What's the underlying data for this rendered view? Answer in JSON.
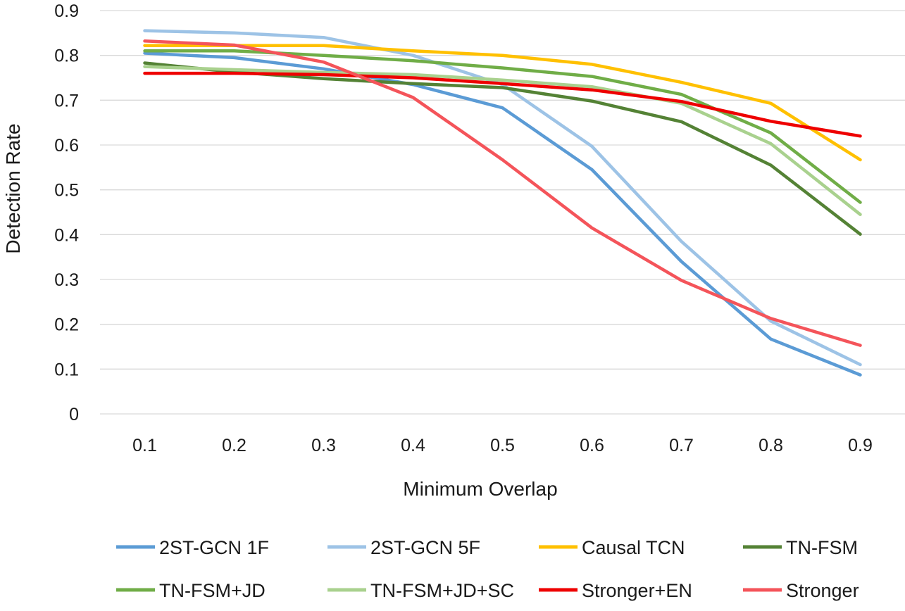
{
  "chart_data": {
    "type": "line",
    "title": "",
    "xlabel": "Minimum Overlap",
    "ylabel": "Detection Rate",
    "categories": [
      "0.1",
      "0.2",
      "0.3",
      "0.4",
      "0.5",
      "0.6",
      "0.7",
      "0.8",
      "0.9"
    ],
    "ylim": [
      0,
      0.9
    ],
    "yticks": [
      "0",
      "0.1",
      "0.2",
      "0.3",
      "0.4",
      "0.5",
      "0.6",
      "0.7",
      "0.8",
      "0.9"
    ],
    "grid": true,
    "legend_position": "bottom",
    "series": [
      {
        "name": "2ST-GCN 1F",
        "color": "#5b9bd5",
        "values": [
          0.805,
          0.795,
          0.77,
          0.735,
          0.683,
          0.545,
          0.34,
          0.167,
          0.087
        ]
      },
      {
        "name": "2ST-GCN 5F",
        "color": "#9dc3e6",
        "values": [
          0.855,
          0.85,
          0.84,
          0.8,
          0.735,
          0.597,
          0.385,
          0.207,
          0.11
        ]
      },
      {
        "name": "Causal TCN",
        "color": "#ffc000",
        "values": [
          0.822,
          0.822,
          0.822,
          0.81,
          0.8,
          0.78,
          0.74,
          0.693,
          0.567
        ]
      },
      {
        "name": "TN-FSM",
        "color": "#548235",
        "values": [
          0.783,
          0.763,
          0.748,
          0.737,
          0.728,
          0.698,
          0.652,
          0.555,
          0.401
        ]
      },
      {
        "name": "TN-FSM+JD",
        "color": "#70ad47",
        "values": [
          0.81,
          0.81,
          0.8,
          0.788,
          0.772,
          0.753,
          0.713,
          0.627,
          0.472
        ]
      },
      {
        "name": "TN-FSM+JD+SC",
        "color": "#a9d18e",
        "values": [
          0.775,
          0.768,
          0.762,
          0.757,
          0.745,
          0.73,
          0.693,
          0.603,
          0.445
        ]
      },
      {
        "name": "Stronger+EN",
        "color": "#ee0000",
        "values": [
          0.76,
          0.76,
          0.757,
          0.75,
          0.737,
          0.723,
          0.697,
          0.653,
          0.62
        ]
      },
      {
        "name": "Stronger",
        "color": "#f4545a",
        "values": [
          0.832,
          0.823,
          0.785,
          0.706,
          0.567,
          0.415,
          0.298,
          0.213,
          0.153
        ]
      }
    ]
  }
}
